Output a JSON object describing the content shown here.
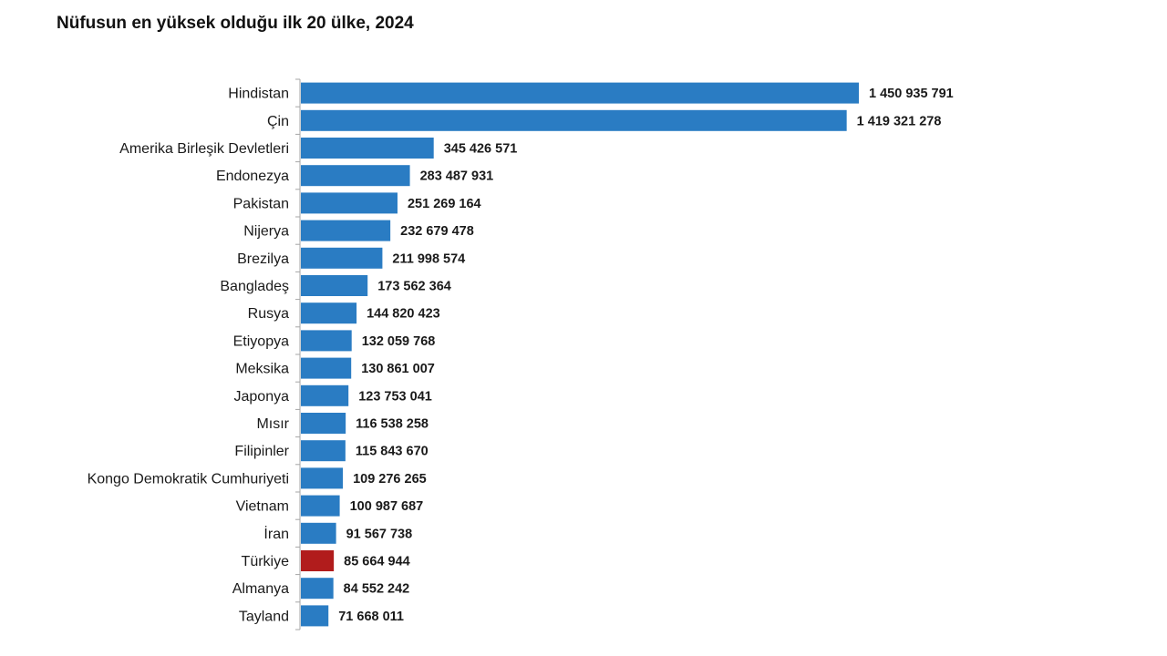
{
  "chart_data": {
    "type": "bar",
    "orientation": "horizontal",
    "title": "Nüfusun en yüksek olduğu ilk 20 ülke, 2024",
    "xlabel": "",
    "ylabel": "",
    "grid": false,
    "legend": "none",
    "categories": [
      "Hindistan",
      "Çin",
      "Amerika Birleşik Devletleri",
      "Endonezya",
      "Pakistan",
      "Nijerya",
      "Brezilya",
      "Bangladeş",
      "Rusya",
      "Etiyopya",
      "Meksika",
      "Japonya",
      "Mısır",
      "Filipinler",
      "Kongo Demokratik Cumhuriyeti",
      "Vietnam",
      "İran",
      "Türkiye",
      "Almanya",
      "Tayland"
    ],
    "values": [
      1450935791,
      1419321278,
      345426571,
      283487931,
      251269164,
      232679478,
      211998574,
      173562364,
      144820423,
      132059768,
      130861007,
      123753041,
      116538258,
      115843670,
      109276265,
      100987687,
      91567738,
      85664944,
      84552242,
      71668011
    ],
    "value_labels": [
      "1 450 935 791",
      "1 419 321 278",
      "345 426 571",
      "283 487 931",
      "251 269 164",
      "232 679 478",
      "211 998 574",
      "173 562 364",
      "144 820 423",
      "132 059 768",
      "130 861 007",
      "123 753 041",
      "116 538 258",
      "115 843 670",
      "109 276 265",
      "100 987 687",
      "91 567 738",
      "85 664 944",
      "84 552 242",
      "71 668 011"
    ],
    "colors": {
      "default": "#2a7cc3",
      "highlight": "#b11c1c"
    },
    "highlight_category": "Türkiye"
  }
}
